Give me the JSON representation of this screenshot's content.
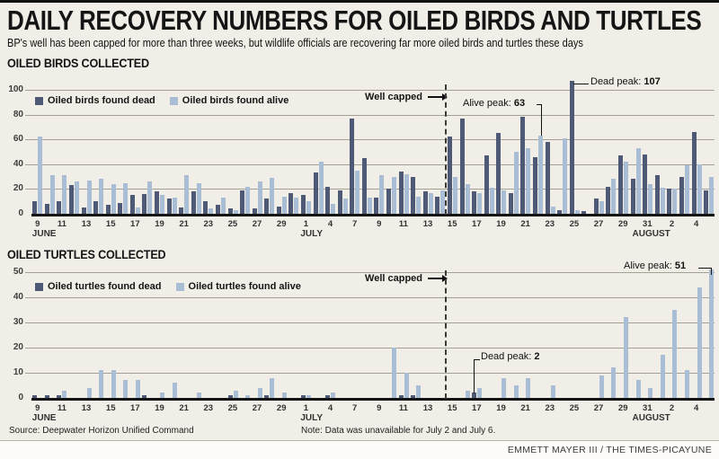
{
  "header": {
    "title": "DAILY RECOVERY NUMBERS FOR OILED BIRDS AND TURTLES",
    "subtitle": "BP's well has been capped for more than three weeks, but wildlife officials are recovering far more oiled birds and turtles these days"
  },
  "colors": {
    "dead_bar": "#4d5975",
    "alive_bar": "#a9bdd4",
    "background": "#f1eee7",
    "gridline": "#a49f94",
    "axis": "#141414"
  },
  "footer": {
    "source": "Source: Deepwater Horizon Unified Command",
    "note": "Note: Data was unavailable for July 2 and July 6.",
    "credit": "EMMETT MAYER III / THE TIMES-PICAYUNE"
  },
  "chart_data": [
    {
      "type": "bar",
      "title": "OILED BIRDS COLLECTED",
      "ylim": [
        0,
        100
      ],
      "yticks": [
        0,
        20,
        40,
        60,
        80,
        100
      ],
      "categories": [
        "Jun 9",
        "Jun 10",
        "Jun 11",
        "Jun 12",
        "Jun 13",
        "Jun 14",
        "Jun 15",
        "Jun 16",
        "Jun 17",
        "Jun 18",
        "Jun 19",
        "Jun 20",
        "Jun 21",
        "Jun 22",
        "Jun 23",
        "Jun 24",
        "Jun 25",
        "Jun 26",
        "Jun 27",
        "Jun 28",
        "Jun 29",
        "Jun 30",
        "Jul 1",
        "Jul 3",
        "Jul 4",
        "Jul 5",
        "Jul 7",
        "Jul 8",
        "Jul 9",
        "Jul 10",
        "Jul 11",
        "Jul 12",
        "Jul 13",
        "Jul 14",
        "Jul 15",
        "Jul 16",
        "Jul 17",
        "Jul 18",
        "Jul 19",
        "Jul 20",
        "Jul 21",
        "Jul 22",
        "Jul 23",
        "Jul 24",
        "Jul 25",
        "Jul 26",
        "Jul 27",
        "Jul 28",
        "Jul 29",
        "Jul 30",
        "Jul 31",
        "Aug 1",
        "Aug 2",
        "Aug 3",
        "Aug 4",
        "Aug 5"
      ],
      "series": [
        {
          "name": "Oiled birds found dead",
          "color": "#4d5975",
          "values": [
            10,
            8,
            10,
            23,
            5,
            10,
            7,
            9,
            15,
            16,
            18,
            12,
            5,
            18,
            10,
            7,
            4,
            19,
            4,
            12,
            6,
            17,
            15,
            33,
            22,
            19,
            77,
            45,
            13,
            20,
            34,
            30,
            18,
            14,
            62,
            77,
            18,
            47,
            65,
            17,
            78,
            46,
            58,
            3,
            107,
            2,
            12,
            22,
            47,
            28,
            48,
            31,
            20,
            30,
            66,
            19
          ]
        },
        {
          "name": "Oiled birds found alive",
          "color": "#a9bdd4",
          "values": [
            62,
            31,
            31,
            26,
            27,
            28,
            24,
            25,
            5,
            26,
            15,
            13,
            31,
            25,
            4,
            13,
            3,
            22,
            26,
            29,
            14,
            13,
            10,
            42,
            8,
            12,
            35,
            13,
            31,
            30,
            32,
            14,
            17,
            19,
            30,
            24,
            17,
            21,
            19,
            50,
            53,
            63,
            6,
            61,
            3,
            0,
            10,
            28,
            42,
            53,
            24,
            21,
            20,
            39,
            40,
            30
          ]
        }
      ],
      "xticks": [
        "9",
        "11",
        "13",
        "15",
        "17",
        "19",
        "21",
        "23",
        "25",
        "27",
        "29",
        "1",
        "4",
        "7",
        "9",
        "11",
        "13",
        "15",
        "17",
        "19",
        "21",
        "23",
        "25",
        "27",
        "29",
        "31",
        "2",
        "4"
      ],
      "months": [
        {
          "label": "JUNE",
          "tick": 0
        },
        {
          "label": "JULY",
          "tick": 11
        },
        {
          "label": "AUGUST",
          "tick": 26
        }
      ],
      "annotations": {
        "well_capped": "Well capped",
        "alive_peak_label": "Alive peak:",
        "alive_peak_value": "63",
        "dead_peak_label": "Dead peak:",
        "dead_peak_value": "107"
      }
    },
    {
      "type": "bar",
      "title": "OILED TURTLES COLLECTED",
      "ylim": [
        0,
        50
      ],
      "yticks": [
        0,
        10,
        20,
        30,
        40,
        50
      ],
      "categories": [
        "Jun 9",
        "Jun 10",
        "Jun 11",
        "Jun 12",
        "Jun 13",
        "Jun 14",
        "Jun 15",
        "Jun 16",
        "Jun 17",
        "Jun 18",
        "Jun 19",
        "Jun 20",
        "Jun 21",
        "Jun 22",
        "Jun 23",
        "Jun 24",
        "Jun 25",
        "Jun 26",
        "Jun 27",
        "Jun 28",
        "Jun 29",
        "Jun 30",
        "Jul 1",
        "Jul 3",
        "Jul 4",
        "Jul 5",
        "Jul 7",
        "Jul 8",
        "Jul 9",
        "Jul 10",
        "Jul 11",
        "Jul 12",
        "Jul 13",
        "Jul 14",
        "Jul 15",
        "Jul 16",
        "Jul 17",
        "Jul 18",
        "Jul 19",
        "Jul 20",
        "Jul 21",
        "Jul 22",
        "Jul 23",
        "Jul 24",
        "Jul 25",
        "Jul 26",
        "Jul 27",
        "Jul 28",
        "Jul 29",
        "Jul 30",
        "Jul 31",
        "Aug 1",
        "Aug 2",
        "Aug 3",
        "Aug 4",
        "Aug 5"
      ],
      "series": [
        {
          "name": "Oiled turtles found dead",
          "color": "#4d5975",
          "values": [
            1,
            1,
            1,
            0,
            0,
            0,
            0,
            0,
            0,
            1,
            0,
            0,
            0,
            0,
            0,
            0,
            1,
            0,
            0,
            1,
            0,
            0,
            1,
            0,
            1,
            0,
            0,
            0,
            0,
            0,
            1,
            1,
            0,
            0,
            0,
            0,
            2,
            0,
            0,
            0,
            0,
            0,
            0,
            0,
            0,
            0,
            0,
            0,
            0,
            0,
            0,
            0,
            0,
            0,
            0,
            0
          ]
        },
        {
          "name": "Oiled turtles found alive",
          "color": "#a9bdd4",
          "values": [
            0,
            0,
            3,
            0,
            4,
            11,
            11,
            7,
            7,
            0,
            2,
            6,
            0,
            2,
            0,
            0,
            3,
            1,
            4,
            8,
            2,
            0,
            1,
            0,
            2,
            0,
            0,
            0,
            0,
            20,
            10,
            5,
            0,
            0,
            0,
            3,
            4,
            0,
            8,
            5,
            8,
            0,
            5,
            0,
            0,
            0,
            9,
            12,
            32,
            7,
            4,
            17,
            35,
            11,
            44,
            51
          ]
        }
      ],
      "xticks": [
        "9",
        "11",
        "13",
        "15",
        "17",
        "19",
        "21",
        "23",
        "25",
        "27",
        "29",
        "1",
        "4",
        "7",
        "9",
        "11",
        "13",
        "15",
        "17",
        "19",
        "21",
        "23",
        "25",
        "27",
        "29",
        "31",
        "2",
        "4"
      ],
      "months": [
        {
          "label": "JUNE",
          "tick": 0
        },
        {
          "label": "JULY",
          "tick": 11
        },
        {
          "label": "AUGUST",
          "tick": 26
        }
      ],
      "annotations": {
        "well_capped": "Well capped",
        "dead_peak_label": "Dead peak:",
        "dead_peak_value": "2",
        "alive_peak_label": "Alive peak:",
        "alive_peak_value": "51"
      }
    }
  ]
}
